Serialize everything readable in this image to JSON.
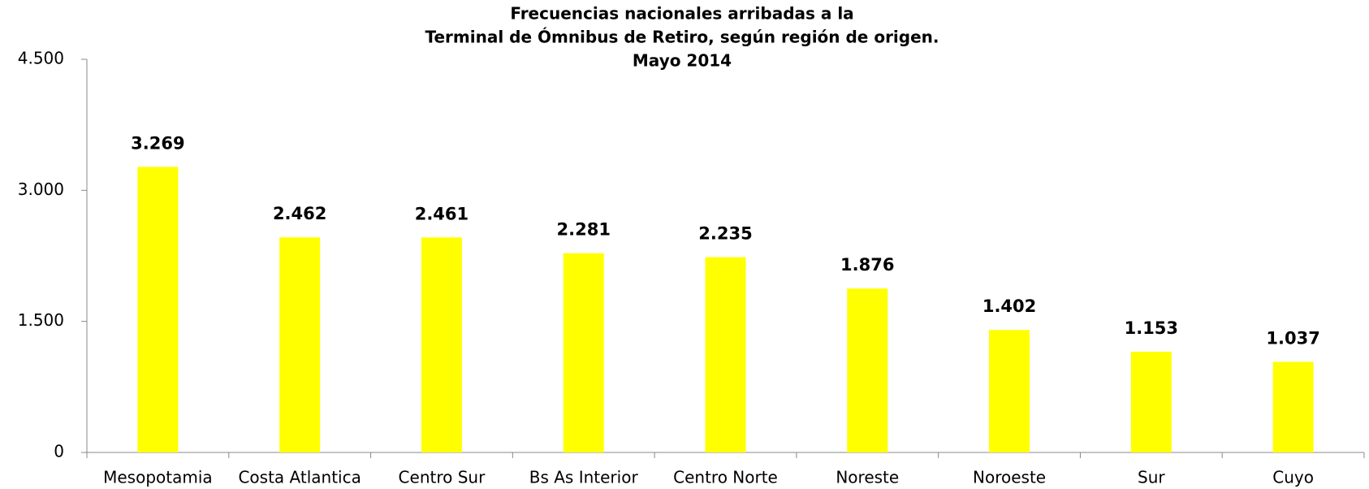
{
  "chart_data": {
    "type": "bar",
    "title": [
      "Frecuencias nacionales arribadas a la",
      "Terminal de Ómnibus de Retiro, según región de origen.",
      "Mayo 2014"
    ],
    "categories": [
      "Mesopotamia",
      "Costa Atlantica",
      "Centro Sur",
      "Bs As Interior",
      "Centro Norte",
      "Noreste",
      "Noroeste",
      "Sur",
      "Cuyo"
    ],
    "values": [
      3269,
      2462,
      2461,
      2281,
      2235,
      1876,
      1402,
      1153,
      1037
    ],
    "value_labels": [
      "3.269",
      "2.462",
      "2.461",
      "2.281",
      "2.235",
      "1.876",
      "1.402",
      "1.153",
      "1.037"
    ],
    "color": "#ffff00",
    "ylim": [
      0,
      4500
    ],
    "yticks": [
      0,
      {
        "value": 1500,
        "label": "1.500"
      },
      {
        "value": 3000,
        "label": "3.000"
      },
      {
        "value": 4500,
        "label": "4.500"
      }
    ],
    "grid": false
  }
}
